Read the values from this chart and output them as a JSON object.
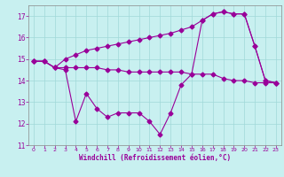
{
  "title": "",
  "xlabel": "Windchill (Refroidissement éolien,°C)",
  "background_color": "#c8f0f0",
  "line_color": "#990099",
  "grid_color": "#a0d8d8",
  "xlim": [
    -0.5,
    23.5
  ],
  "ylim": [
    11,
    17.5
  ],
  "yticks": [
    11,
    12,
    13,
    14,
    15,
    16,
    17
  ],
  "xticks": [
    0,
    1,
    2,
    3,
    4,
    5,
    6,
    7,
    8,
    9,
    10,
    11,
    12,
    13,
    14,
    15,
    16,
    17,
    18,
    19,
    20,
    21,
    22,
    23
  ],
  "line1_x": [
    0,
    1,
    2,
    3,
    4,
    5,
    6,
    7,
    8,
    9,
    10,
    11,
    12,
    13,
    14,
    15,
    16,
    17,
    18,
    19,
    20,
    21,
    22,
    23
  ],
  "line1_y": [
    14.9,
    14.9,
    14.6,
    14.6,
    14.6,
    14.6,
    14.6,
    14.5,
    14.5,
    14.4,
    14.4,
    14.4,
    14.4,
    14.4,
    14.4,
    14.3,
    14.3,
    14.3,
    14.1,
    14.0,
    14.0,
    13.9,
    13.9,
    13.9
  ],
  "line2_x": [
    0,
    1,
    2,
    3,
    4,
    5,
    6,
    7,
    8,
    9,
    10,
    11,
    12,
    13,
    14,
    15,
    16,
    17,
    18,
    19,
    20,
    21,
    22,
    23
  ],
  "line2_y": [
    14.9,
    14.9,
    14.6,
    14.5,
    12.1,
    13.4,
    12.7,
    12.3,
    12.5,
    12.5,
    12.5,
    12.1,
    11.5,
    12.5,
    13.8,
    14.3,
    16.8,
    17.1,
    17.2,
    17.1,
    17.1,
    15.6,
    14.0,
    13.9
  ],
  "line3_x": [
    0,
    1,
    2,
    3,
    4,
    5,
    6,
    7,
    8,
    9,
    10,
    11,
    12,
    13,
    14,
    15,
    16,
    17,
    18,
    19,
    20,
    21,
    22,
    23
  ],
  "line3_y": [
    14.9,
    14.9,
    14.6,
    15.0,
    15.2,
    15.4,
    15.5,
    15.6,
    15.7,
    15.8,
    15.9,
    16.0,
    16.1,
    16.2,
    16.35,
    16.5,
    16.8,
    17.1,
    17.2,
    17.1,
    17.1,
    15.6,
    14.0,
    13.9
  ]
}
